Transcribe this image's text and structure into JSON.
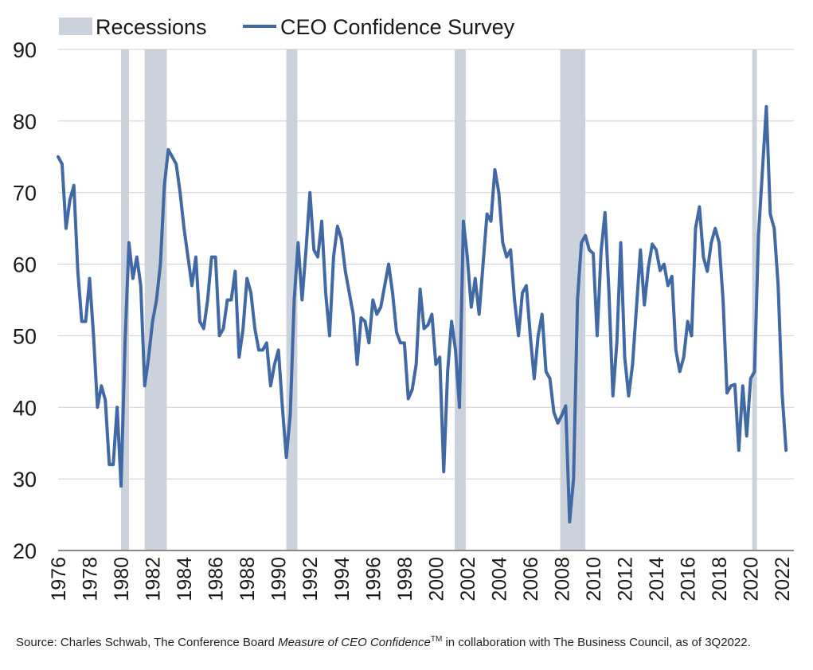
{
  "chart_data": {
    "type": "line",
    "title": "",
    "xlabel": "",
    "ylabel": "",
    "xlim": [
      1976.0,
      2022.75
    ],
    "ylim": [
      20,
      90
    ],
    "y_ticks": [
      20,
      30,
      40,
      50,
      60,
      70,
      80,
      90
    ],
    "x_ticks": [
      "1976",
      "1978",
      "1980",
      "1982",
      "1984",
      "1986",
      "1988",
      "1990",
      "1992",
      "1994",
      "1996",
      "1998",
      "2000",
      "2002",
      "2004",
      "2006",
      "2008",
      "2010",
      "2012",
      "2014",
      "2016",
      "2018",
      "2020",
      "2022"
    ],
    "grid": "horizontal",
    "legend": {
      "position": "top-left",
      "entries": [
        {
          "label": "Recessions",
          "type": "area",
          "color": "#cbd2db"
        },
        {
          "label": "CEO Confidence Survey",
          "type": "line",
          "color": "#4169a6"
        }
      ]
    },
    "recessions": [
      [
        1980.0,
        1980.5
      ],
      [
        1981.5,
        1982.9
      ],
      [
        1990.5,
        1991.2
      ],
      [
        2001.2,
        2001.9
      ],
      [
        2007.9,
        2009.5
      ],
      [
        2020.1,
        2020.4
      ]
    ],
    "series": [
      {
        "name": "CEO Confidence Survey",
        "color": "#4169a6",
        "points": [
          [
            1976.0,
            75
          ],
          [
            1976.25,
            74
          ],
          [
            1976.5,
            65
          ],
          [
            1976.75,
            69
          ],
          [
            1977.0,
            71
          ],
          [
            1977.25,
            59
          ],
          [
            1977.5,
            52
          ],
          [
            1977.75,
            52
          ],
          [
            1978.0,
            58
          ],
          [
            1978.25,
            50
          ],
          [
            1978.5,
            40
          ],
          [
            1978.75,
            43
          ],
          [
            1979.0,
            41
          ],
          [
            1979.25,
            32
          ],
          [
            1979.5,
            32
          ],
          [
            1979.75,
            40
          ],
          [
            1980.0,
            29
          ],
          [
            1980.25,
            49
          ],
          [
            1980.5,
            63
          ],
          [
            1980.75,
            58
          ],
          [
            1981.0,
            61
          ],
          [
            1981.25,
            57
          ],
          [
            1981.5,
            43
          ],
          [
            1981.75,
            47
          ],
          [
            1982.0,
            52
          ],
          [
            1982.25,
            55
          ],
          [
            1982.5,
            60
          ],
          [
            1982.75,
            71
          ],
          [
            1983.0,
            76
          ],
          [
            1983.25,
            75
          ],
          [
            1983.5,
            74
          ],
          [
            1983.75,
            70
          ],
          [
            1984.0,
            65
          ],
          [
            1984.25,
            61
          ],
          [
            1984.5,
            57
          ],
          [
            1984.75,
            61
          ],
          [
            1985.0,
            52
          ],
          [
            1985.25,
            51
          ],
          [
            1985.5,
            55
          ],
          [
            1985.75,
            61
          ],
          [
            1986.0,
            61
          ],
          [
            1986.25,
            50
          ],
          [
            1986.5,
            51
          ],
          [
            1986.75,
            55
          ],
          [
            1987.0,
            55
          ],
          [
            1987.25,
            59
          ],
          [
            1987.5,
            47
          ],
          [
            1987.75,
            51
          ],
          [
            1988.0,
            58
          ],
          [
            1988.25,
            56
          ],
          [
            1988.5,
            51
          ],
          [
            1988.75,
            48
          ],
          [
            1989.0,
            48
          ],
          [
            1989.25,
            49
          ],
          [
            1989.5,
            43
          ],
          [
            1989.75,
            46
          ],
          [
            1990.0,
            48
          ],
          [
            1990.25,
            40
          ],
          [
            1990.5,
            33
          ],
          [
            1990.75,
            39
          ],
          [
            1991.0,
            55
          ],
          [
            1991.25,
            63
          ],
          [
            1991.5,
            55
          ],
          [
            1991.75,
            62
          ],
          [
            1992.0,
            70
          ],
          [
            1992.25,
            62
          ],
          [
            1992.5,
            61
          ],
          [
            1992.75,
            66
          ],
          [
            1993.0,
            56
          ],
          [
            1993.25,
            50
          ],
          [
            1993.5,
            61
          ],
          [
            1993.75,
            65.3
          ],
          [
            1994.0,
            63.5
          ],
          [
            1994.25,
            59
          ],
          [
            1994.5,
            56
          ],
          [
            1994.75,
            53
          ],
          [
            1995.0,
            46
          ],
          [
            1995.25,
            52.5
          ],
          [
            1995.5,
            52
          ],
          [
            1995.75,
            49
          ],
          [
            1996.0,
            55
          ],
          [
            1996.25,
            53
          ],
          [
            1996.5,
            54
          ],
          [
            1996.75,
            57
          ],
          [
            1997.0,
            60
          ],
          [
            1997.25,
            56
          ],
          [
            1997.5,
            50.5
          ],
          [
            1997.75,
            49
          ],
          [
            1998.0,
            49
          ],
          [
            1998.25,
            41.2
          ],
          [
            1998.5,
            42.5
          ],
          [
            1998.75,
            46
          ],
          [
            1999.0,
            56.5
          ],
          [
            1999.25,
            51
          ],
          [
            1999.5,
            51.5
          ],
          [
            1999.75,
            53
          ],
          [
            2000.0,
            46
          ],
          [
            2000.25,
            47
          ],
          [
            2000.5,
            31
          ],
          [
            2000.75,
            45
          ],
          [
            2001.0,
            52
          ],
          [
            2001.25,
            48
          ],
          [
            2001.5,
            40
          ],
          [
            2001.75,
            66
          ],
          [
            2002.0,
            61
          ],
          [
            2002.25,
            54
          ],
          [
            2002.5,
            58
          ],
          [
            2002.75,
            53
          ],
          [
            2003.0,
            60
          ],
          [
            2003.25,
            67
          ],
          [
            2003.5,
            66
          ],
          [
            2003.75,
            73.2
          ],
          [
            2004.0,
            70
          ],
          [
            2004.25,
            63
          ],
          [
            2004.5,
            61
          ],
          [
            2004.75,
            62
          ],
          [
            2005.0,
            55
          ],
          [
            2005.25,
            50
          ],
          [
            2005.5,
            56
          ],
          [
            2005.75,
            57
          ],
          [
            2006.0,
            50
          ],
          [
            2006.25,
            44
          ],
          [
            2006.5,
            50
          ],
          [
            2006.75,
            53
          ],
          [
            2007.0,
            45
          ],
          [
            2007.25,
            44
          ],
          [
            2007.5,
            39.3
          ],
          [
            2007.75,
            37.8
          ],
          [
            2008.0,
            38.9
          ],
          [
            2008.25,
            40.2
          ],
          [
            2008.5,
            24
          ],
          [
            2008.75,
            30
          ],
          [
            2009.0,
            55
          ],
          [
            2009.25,
            63
          ],
          [
            2009.5,
            64
          ],
          [
            2009.75,
            62
          ],
          [
            2010.0,
            61.5
          ],
          [
            2010.25,
            50
          ],
          [
            2010.5,
            61.8
          ],
          [
            2010.75,
            67.2
          ],
          [
            2011.0,
            56
          ],
          [
            2011.25,
            41.6
          ],
          [
            2011.5,
            49
          ],
          [
            2011.75,
            63
          ],
          [
            2012.0,
            47
          ],
          [
            2012.25,
            41.6
          ],
          [
            2012.5,
            46
          ],
          [
            2012.75,
            54
          ],
          [
            2013.0,
            62
          ],
          [
            2013.25,
            54.3
          ],
          [
            2013.5,
            59.5
          ],
          [
            2013.75,
            62.8
          ],
          [
            2014.0,
            62
          ],
          [
            2014.25,
            59.1
          ],
          [
            2014.5,
            60
          ],
          [
            2014.75,
            57
          ],
          [
            2015.0,
            58.3
          ],
          [
            2015.25,
            48
          ],
          [
            2015.5,
            45
          ],
          [
            2015.75,
            47
          ],
          [
            2016.0,
            52
          ],
          [
            2016.25,
            50
          ],
          [
            2016.5,
            65
          ],
          [
            2016.75,
            68
          ],
          [
            2017.0,
            61
          ],
          [
            2017.25,
            59
          ],
          [
            2017.5,
            63
          ],
          [
            2017.75,
            65
          ],
          [
            2018.0,
            63
          ],
          [
            2018.25,
            55
          ],
          [
            2018.5,
            42
          ],
          [
            2018.75,
            43
          ],
          [
            2019.0,
            43.2
          ],
          [
            2019.25,
            34
          ],
          [
            2019.5,
            43
          ],
          [
            2019.75,
            36
          ],
          [
            2020.0,
            44
          ],
          [
            2020.25,
            45
          ],
          [
            2020.5,
            64
          ],
          [
            2020.75,
            73
          ],
          [
            2021.0,
            82
          ],
          [
            2021.25,
            67
          ],
          [
            2021.5,
            65
          ],
          [
            2021.75,
            57
          ],
          [
            2022.0,
            42
          ],
          [
            2022.25,
            34
          ]
        ]
      }
    ]
  },
  "source_note": {
    "prefix": "Source: Charles Schwab, The Conference Board ",
    "italic": "Measure of CEO Confidence",
    "superscript": "TM",
    "suffix": " in collaboration with The Business Council, as of 3Q2022."
  }
}
